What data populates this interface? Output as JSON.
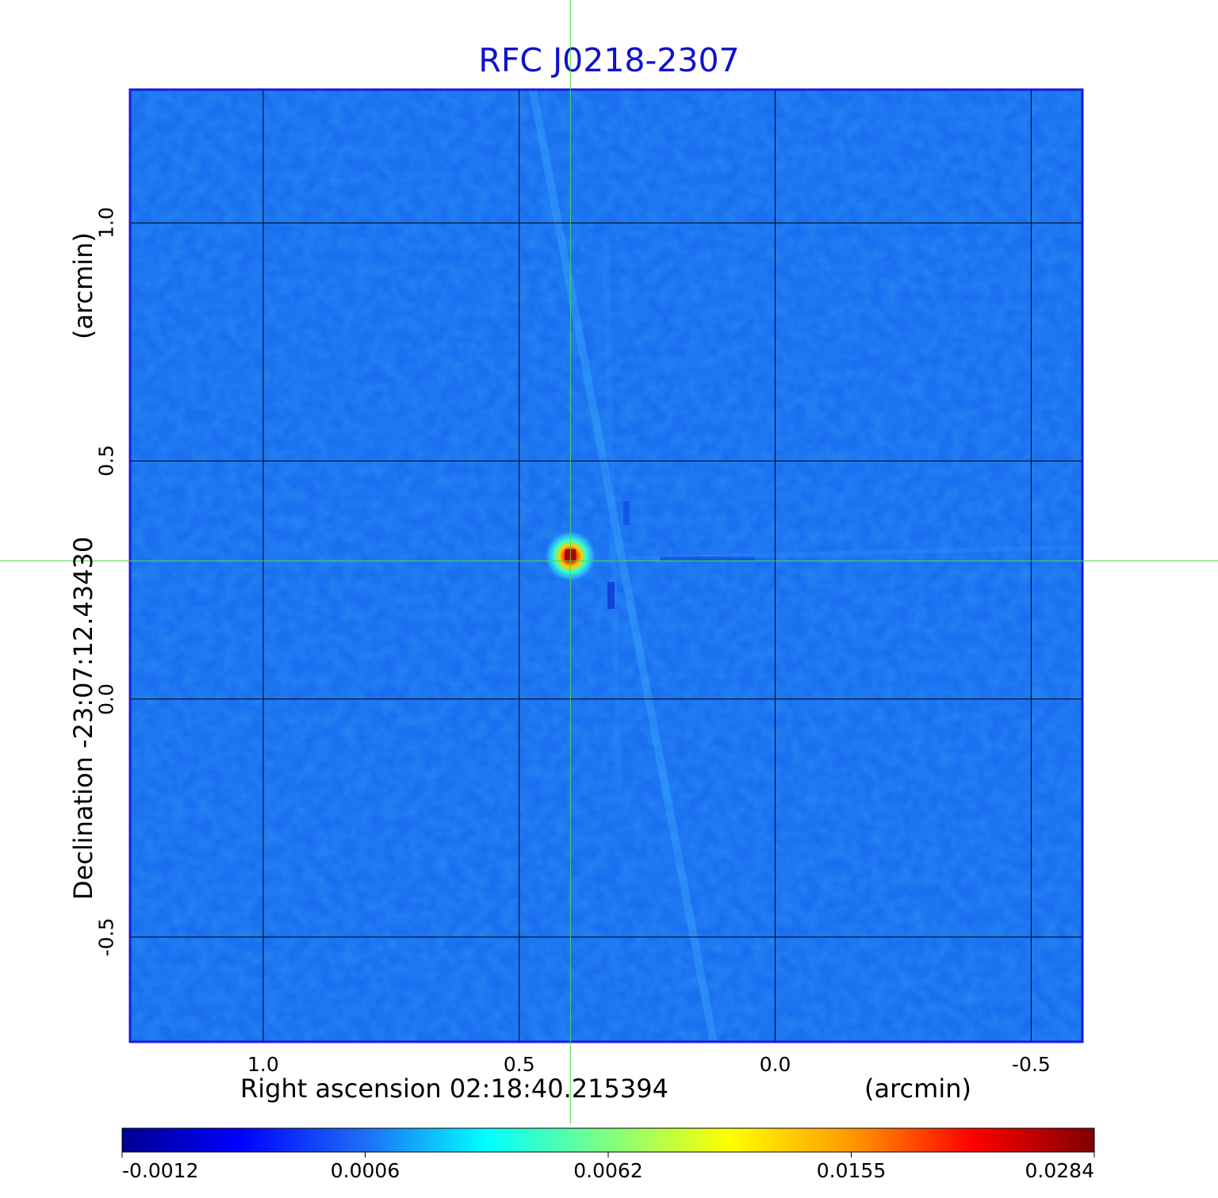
{
  "chart_data": {
    "type": "heatmap",
    "title": "RFC J0218-2307",
    "xlabel": "Right ascension  02:18:40.215394",
    "xlabel_unit": "(arcmin)",
    "ylabel": "Declination  -23:07:12.43430",
    "ylabel_unit": "(arcmin)",
    "xlim": [
      1.26,
      -0.6
    ],
    "ylim": [
      -0.72,
      1.28
    ],
    "x_ticks": [
      1.0,
      0.5,
      0.0,
      -0.5
    ],
    "x_tick_labels": [
      "1.0",
      "0.5",
      "0.0",
      "-0.5"
    ],
    "y_ticks": [
      1.0,
      0.5,
      0.0,
      -0.5
    ],
    "y_tick_labels": [
      "1.0",
      "0.5",
      "0.0",
      "-0.5"
    ],
    "grid": true,
    "crosshair": {
      "x": 0.4,
      "y": 0.29,
      "color": "#44dd44"
    },
    "source": {
      "x": 0.4,
      "y": 0.3,
      "peak": 0.0284
    },
    "colorbar": {
      "placement": "bottom",
      "colormap": "jet",
      "ticks": [
        -0.0012,
        0.0006,
        0.0062,
        0.0155,
        0.0284
      ],
      "tick_labels": [
        "-0.0012",
        "0.0006",
        "0.0062",
        "0.0155",
        "0.0284"
      ]
    },
    "colors": {
      "title": "#1010d0",
      "frame": "#1a1ae0",
      "background_map": "#1a6ff0"
    }
  }
}
